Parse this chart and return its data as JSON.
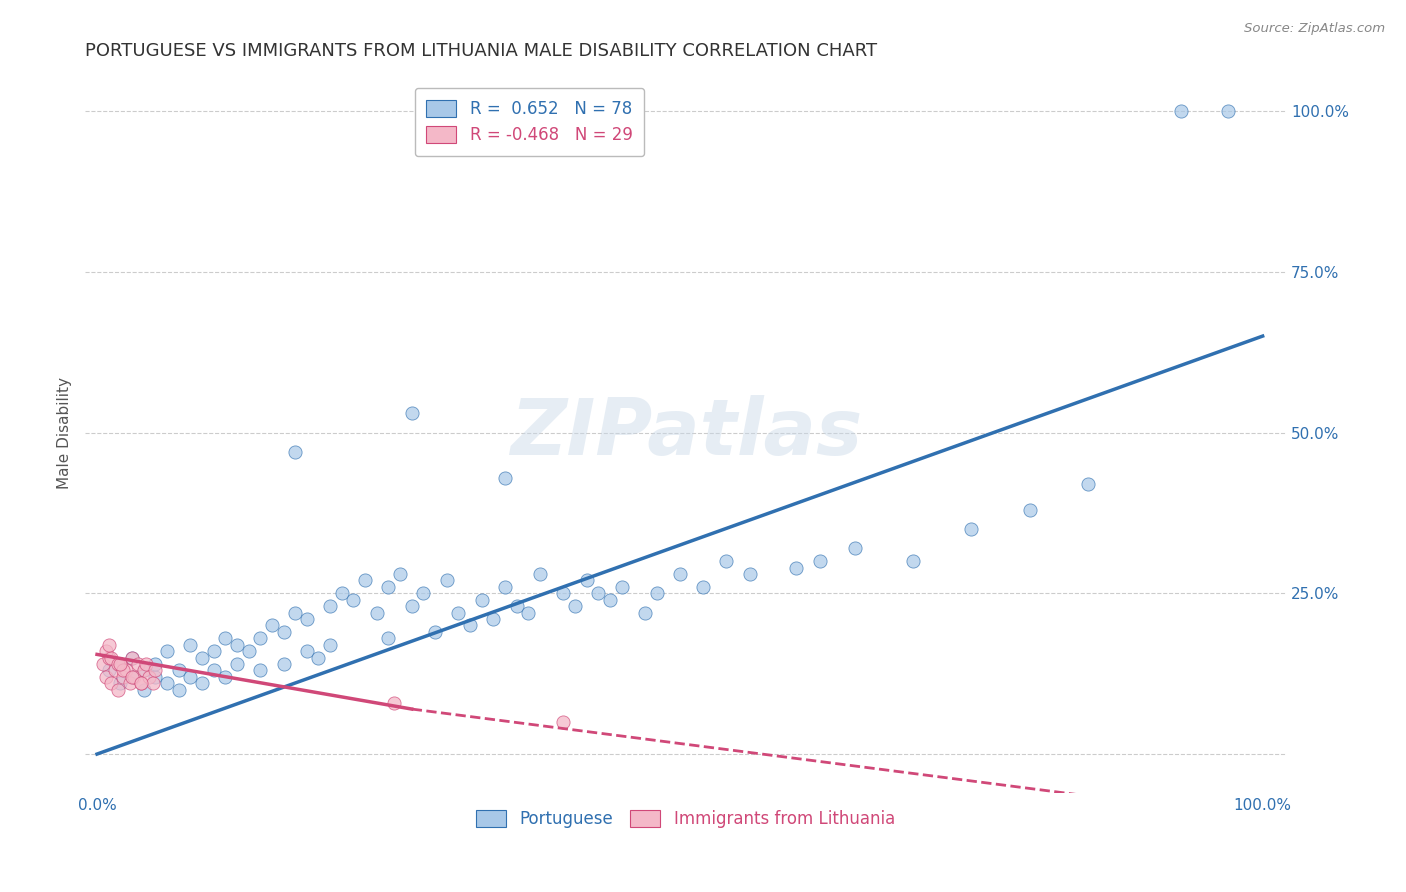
{
  "title": "PORTUGUESE VS IMMIGRANTS FROM LITHUANIA MALE DISABILITY CORRELATION CHART",
  "source": "Source: ZipAtlas.com",
  "ylabel": "Male Disability",
  "watermark": "ZIPatlas",
  "xlim": [
    -0.01,
    1.02
  ],
  "ylim": [
    -0.06,
    1.06
  ],
  "blue_R": 0.652,
  "blue_N": 78,
  "pink_R": -0.468,
  "pink_N": 29,
  "blue_color": "#a8c8e8",
  "pink_color": "#f4b8c8",
  "blue_line_color": "#3070b0",
  "pink_line_color": "#d04878",
  "blue_scatter_x": [
    0.01,
    0.02,
    0.02,
    0.03,
    0.03,
    0.04,
    0.04,
    0.05,
    0.05,
    0.06,
    0.06,
    0.07,
    0.07,
    0.08,
    0.08,
    0.09,
    0.09,
    0.1,
    0.1,
    0.11,
    0.11,
    0.12,
    0.12,
    0.13,
    0.14,
    0.14,
    0.15,
    0.16,
    0.16,
    0.17,
    0.18,
    0.18,
    0.19,
    0.2,
    0.2,
    0.21,
    0.22,
    0.23,
    0.24,
    0.25,
    0.25,
    0.26,
    0.27,
    0.28,
    0.29,
    0.3,
    0.31,
    0.32,
    0.33,
    0.34,
    0.35,
    0.36,
    0.37,
    0.38,
    0.4,
    0.41,
    0.42,
    0.44,
    0.45,
    0.47,
    0.48,
    0.5,
    0.52,
    0.54,
    0.56,
    0.6,
    0.62,
    0.65,
    0.7,
    0.75,
    0.8,
    0.85,
    0.17,
    0.27,
    0.35,
    0.43,
    0.93,
    0.97
  ],
  "blue_scatter_y": [
    0.13,
    0.11,
    0.14,
    0.12,
    0.15,
    0.1,
    0.13,
    0.12,
    0.14,
    0.11,
    0.16,
    0.1,
    0.13,
    0.12,
    0.17,
    0.11,
    0.15,
    0.13,
    0.16,
    0.12,
    0.18,
    0.14,
    0.17,
    0.16,
    0.18,
    0.13,
    0.2,
    0.19,
    0.14,
    0.22,
    0.21,
    0.16,
    0.15,
    0.23,
    0.17,
    0.25,
    0.24,
    0.27,
    0.22,
    0.26,
    0.18,
    0.28,
    0.23,
    0.25,
    0.19,
    0.27,
    0.22,
    0.2,
    0.24,
    0.21,
    0.26,
    0.23,
    0.22,
    0.28,
    0.25,
    0.23,
    0.27,
    0.24,
    0.26,
    0.22,
    0.25,
    0.28,
    0.26,
    0.3,
    0.28,
    0.29,
    0.3,
    0.32,
    0.3,
    0.35,
    0.38,
    0.42,
    0.47,
    0.53,
    0.43,
    0.25,
    1.0,
    1.0
  ],
  "pink_scatter_x": [
    0.005,
    0.008,
    0.01,
    0.012,
    0.015,
    0.018,
    0.02,
    0.022,
    0.025,
    0.028,
    0.03,
    0.032,
    0.035,
    0.038,
    0.04,
    0.042,
    0.045,
    0.048,
    0.05,
    0.008,
    0.012,
    0.018,
    0.022,
    0.03,
    0.038,
    0.01,
    0.02,
    0.255,
    0.4
  ],
  "pink_scatter_y": [
    0.14,
    0.12,
    0.15,
    0.11,
    0.13,
    0.1,
    0.14,
    0.12,
    0.13,
    0.11,
    0.15,
    0.12,
    0.14,
    0.11,
    0.13,
    0.14,
    0.12,
    0.11,
    0.13,
    0.16,
    0.15,
    0.14,
    0.13,
    0.12,
    0.11,
    0.17,
    0.14,
    0.08,
    0.05
  ],
  "blue_line": [
    [
      0.0,
      1.0
    ],
    [
      0.0,
      0.65
    ]
  ],
  "pink_line_solid": [
    [
      0.0,
      0.27
    ],
    [
      0.155,
      0.07
    ]
  ],
  "pink_line_dash": [
    [
      0.27,
      1.0
    ],
    [
      0.07,
      -0.1
    ]
  ],
  "yticks_right": [
    0.25,
    0.5,
    0.75,
    1.0
  ],
  "ytick_labels_right": [
    "25.0%",
    "50.0%",
    "75.0%",
    "100.0%"
  ],
  "background_color": "#ffffff",
  "grid_color": "#cccccc",
  "title_fontsize": 13,
  "axis_label_fontsize": 11,
  "tick_fontsize": 11
}
